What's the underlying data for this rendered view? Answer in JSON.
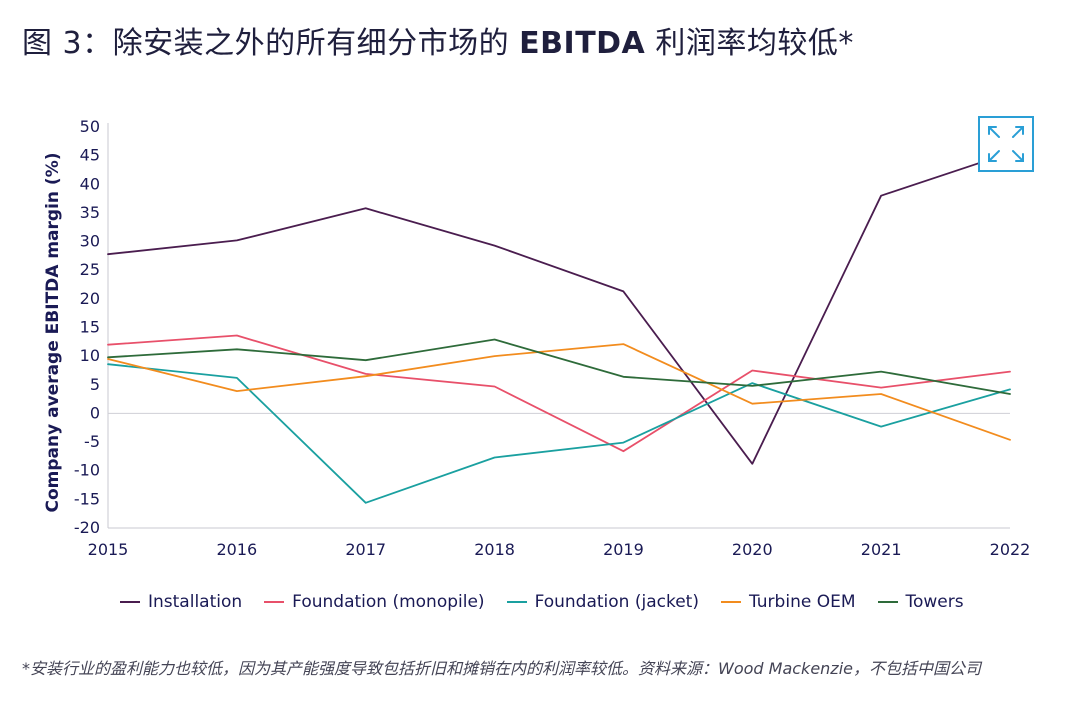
{
  "title": {
    "prefix": "图 3：除安装之外的所有细分市场的 ",
    "bold": "EBITDA",
    "suffix": " 利润率均较低*"
  },
  "expand_button": {
    "icon": "expand-arrows-icon",
    "color": "#2a9fd6"
  },
  "footnote": "*安装行业的盈利能力也较低，因为其产能强度导致包括折旧和摊销在内的利润率较低。资料来源：Wood Mackenzie，不包括中国公司",
  "chart_data": {
    "type": "line",
    "title": "图 3：除安装之外的所有细分市场的 EBITDA 利润率均较低*",
    "xlabel": "",
    "ylabel": "Company average EBITDA margin (%)",
    "x": [
      "2015",
      "2016",
      "2017",
      "2018",
      "2019",
      "2020",
      "2021",
      "2022"
    ],
    "ylim": [
      -20,
      50
    ],
    "yticks": [
      50,
      45,
      40,
      35,
      30,
      25,
      20,
      15,
      10,
      5,
      0,
      -5,
      -10,
      -15,
      -20
    ],
    "grid": false,
    "zero_line": true,
    "legend_position": "bottom",
    "series": [
      {
        "name": "Installation",
        "color": "#4a1d4f",
        "values": [
          27.8,
          30.2,
          35.8,
          29.3,
          21.3,
          -8.8,
          38.0,
          45.5
        ]
      },
      {
        "name": "Foundation (monopile)",
        "color": "#e8506a",
        "values": [
          12.0,
          13.6,
          6.9,
          4.7,
          -6.6,
          7.5,
          4.5,
          7.3
        ]
      },
      {
        "name": "Foundation (jacket)",
        "color": "#1aa0a0",
        "values": [
          8.6,
          6.2,
          -15.6,
          -7.7,
          -5.1,
          5.3,
          -2.3,
          4.2
        ]
      },
      {
        "name": "Turbine OEM",
        "color": "#f28c1e",
        "values": [
          9.5,
          3.9,
          6.5,
          10.0,
          12.1,
          1.7,
          3.4,
          -4.6
        ]
      },
      {
        "name": "Towers",
        "color": "#2e6b3a",
        "values": [
          9.8,
          11.2,
          9.3,
          12.9,
          6.4,
          4.8,
          7.3,
          3.4
        ]
      }
    ]
  }
}
